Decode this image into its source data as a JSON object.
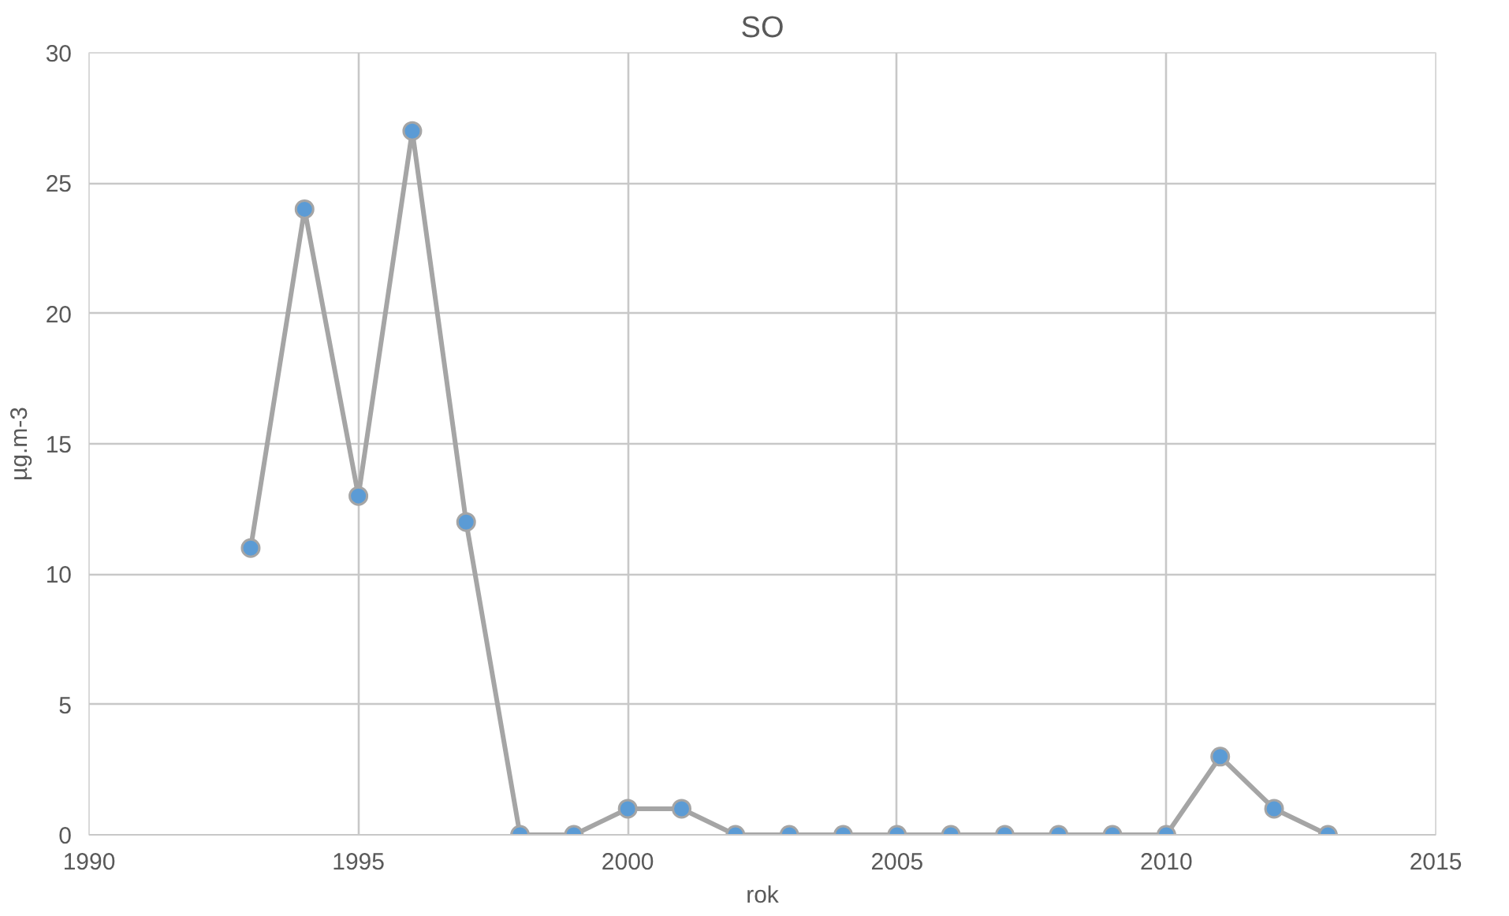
{
  "chart_data": {
    "type": "line",
    "title": "SO",
    "xlabel": "rok",
    "ylabel": "µg.m-3",
    "x": [
      1993,
      1994,
      1995,
      1996,
      1997,
      1998,
      1999,
      2000,
      2001,
      2002,
      2003,
      2004,
      2005,
      2006,
      2007,
      2008,
      2009,
      2010,
      2011,
      2012,
      2013
    ],
    "series": [
      {
        "color": "#a5a5a5",
        "colors": [
          "#5b9bd5",
          "#5b9bd5",
          "#5b9bd5",
          "#5b9bd5",
          "#5b9bd5",
          "#5b9bd5",
          "#5b9bd5",
          "#5b9bd5",
          "#5b9bd5",
          "#5b9bd5",
          "#5b9bd5",
          "#5b9bd5",
          "#5b9bd5",
          "#5b9bd5",
          "#5b9bd5",
          "#5b9bd5",
          "#5b9bd5",
          "#5b9bd5",
          "#5b9bd5",
          "#5b9bd5",
          "#5b9bd5"
        ],
        "values": [
          11,
          24,
          13,
          27,
          12,
          0,
          0,
          1,
          1,
          0,
          0,
          0,
          0,
          0,
          0,
          0,
          0,
          0,
          3,
          1,
          0
        ]
      }
    ],
    "xlim": [
      1990,
      2015
    ],
    "xticks": [
      1990,
      1995,
      2000,
      2005,
      2010,
      2015
    ],
    "ylim": [
      0,
      30
    ],
    "yticks": [
      0,
      5,
      10,
      15,
      20,
      25,
      30
    ],
    "grid": true,
    "marker": "circle",
    "line_style": "solid"
  }
}
